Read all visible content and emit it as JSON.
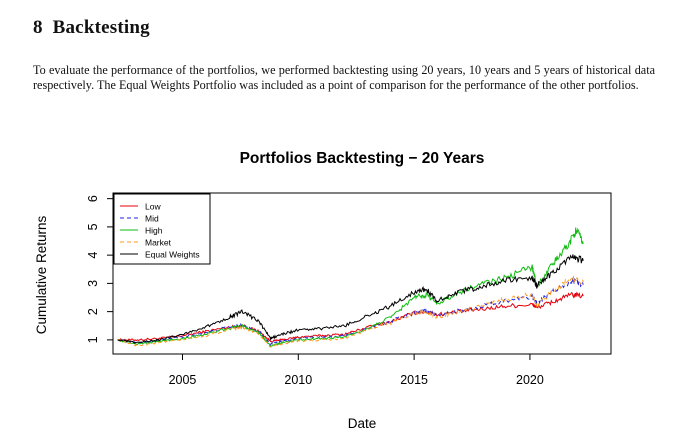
{
  "section": {
    "number": "8",
    "title": "Backtesting"
  },
  "paragraph": "To evaluate the performance of the portfolios, we performed backtesting using 20 years, 10 years and 5 years of historical data respectively. The Equal Weights Portfolio was included as a point of comparison for the performance of the other portfolios.",
  "chart_data": {
    "type": "line",
    "title": "Portfolios Backtesting − 20 Years",
    "xlabel": "Date",
    "ylabel": "Cumulative Returns",
    "xlim": [
      2002.0,
      2023.5
    ],
    "ylim": [
      0.5,
      6.2
    ],
    "xticks": [
      "2005",
      "2010",
      "2015",
      "2020"
    ],
    "yticks": [
      "1",
      "2",
      "3",
      "4",
      "5",
      "6"
    ],
    "grid": false,
    "legend_position": "top-left",
    "series": [
      {
        "name": "Low",
        "color": "#e8000b",
        "dash": "solid",
        "x": [
          2002.2,
          2003,
          2004,
          2005,
          2006,
          2007,
          2007.6,
          2008.3,
          2008.8,
          2009.3,
          2010,
          2011,
          2012,
          2013,
          2014,
          2015,
          2015.5,
          2016,
          2017,
          2018,
          2019,
          2020.1,
          2020.3,
          2021,
          2021.8,
          2022.3
        ],
        "y": [
          1.0,
          1.0,
          1.05,
          1.15,
          1.3,
          1.45,
          1.5,
          1.3,
          0.95,
          1.0,
          1.1,
          1.15,
          1.2,
          1.45,
          1.65,
          1.95,
          2.0,
          1.9,
          2.0,
          2.1,
          2.2,
          2.25,
          2.15,
          2.35,
          2.6,
          2.55
        ]
      },
      {
        "name": "Mid",
        "color": "#2222dd",
        "dash": "dash",
        "x": [
          2002.2,
          2003,
          2004,
          2005,
          2006,
          2007,
          2007.6,
          2008.3,
          2008.8,
          2009.3,
          2010,
          2011,
          2012,
          2013,
          2014,
          2015,
          2015.5,
          2016,
          2017,
          2018,
          2019,
          2020.1,
          2020.3,
          2021,
          2021.8,
          2022.3
        ],
        "y": [
          1.0,
          0.9,
          0.98,
          1.1,
          1.25,
          1.45,
          1.55,
          1.3,
          0.85,
          0.95,
          1.05,
          1.1,
          1.15,
          1.4,
          1.65,
          2.0,
          2.05,
          1.85,
          2.05,
          2.2,
          2.4,
          2.55,
          2.3,
          2.7,
          3.1,
          2.95
        ]
      },
      {
        "name": "High",
        "color": "#11bb11",
        "dash": "solid",
        "x": [
          2002.2,
          2003,
          2004,
          2005,
          2006,
          2007,
          2007.6,
          2008.3,
          2008.8,
          2009.3,
          2010,
          2011,
          2012,
          2013,
          2014,
          2015,
          2015.5,
          2016,
          2017,
          2018,
          2019,
          2020.1,
          2020.3,
          2021,
          2021.6,
          2022.0,
          2022.3
        ],
        "y": [
          1.0,
          0.85,
          0.95,
          1.05,
          1.2,
          1.4,
          1.5,
          1.25,
          0.78,
          0.9,
          1.0,
          1.05,
          1.1,
          1.4,
          1.8,
          2.5,
          2.6,
          2.3,
          2.7,
          3.0,
          3.2,
          3.6,
          2.9,
          3.7,
          4.3,
          4.9,
          4.4
        ]
      },
      {
        "name": "Market",
        "color": "#ff9922",
        "dash": "dash",
        "x": [
          2002.2,
          2003,
          2004,
          2005,
          2006,
          2007,
          2007.6,
          2008.3,
          2008.8,
          2009.3,
          2010,
          2011,
          2012,
          2013,
          2014,
          2015,
          2015.5,
          2016,
          2017,
          2018,
          2019,
          2020.1,
          2020.3,
          2021,
          2021.8,
          2022.3
        ],
        "y": [
          1.0,
          0.8,
          0.9,
          1.0,
          1.15,
          1.35,
          1.45,
          1.2,
          0.75,
          0.85,
          0.95,
          1.0,
          1.05,
          1.35,
          1.6,
          1.95,
          2.0,
          1.8,
          2.0,
          2.2,
          2.45,
          2.6,
          2.2,
          2.75,
          3.2,
          3.05
        ]
      },
      {
        "name": "Equal Weights",
        "color": "#000000",
        "dash": "solid",
        "x": [
          2002.2,
          2003,
          2004,
          2005,
          2006,
          2007,
          2007.6,
          2008.3,
          2008.8,
          2009.3,
          2010,
          2011,
          2012,
          2013,
          2014,
          2015,
          2015.5,
          2016,
          2017,
          2018,
          2019,
          2020.1,
          2020.3,
          2021,
          2021.8,
          2022.3
        ],
        "y": [
          1.0,
          0.9,
          1.0,
          1.2,
          1.45,
          1.8,
          2.0,
          1.65,
          1.05,
          1.2,
          1.35,
          1.4,
          1.5,
          1.85,
          2.2,
          2.7,
          2.8,
          2.4,
          2.7,
          2.9,
          3.1,
          3.2,
          2.9,
          3.4,
          3.9,
          3.8
        ]
      }
    ]
  }
}
